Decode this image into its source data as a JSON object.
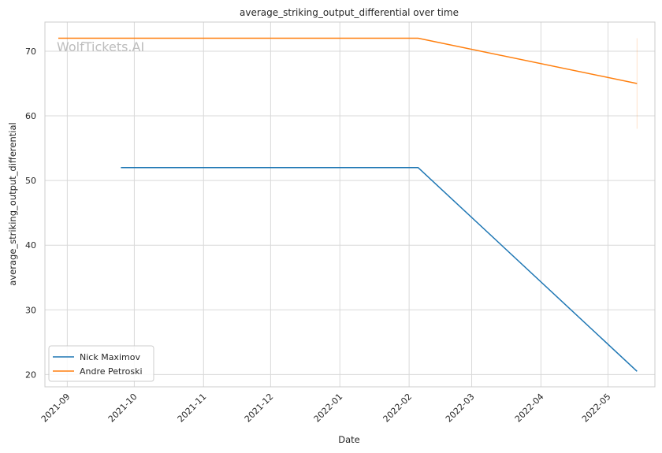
{
  "watermark": "WolfTickets.AI",
  "chart_data": {
    "type": "line",
    "title": "average_striking_output_differential over time",
    "xlabel": "Date",
    "ylabel": "average_striking_output_differential",
    "x_range": [
      "2021-08-22",
      "2022-05-22"
    ],
    "ylim": [
      18.1,
      74.5
    ],
    "x_ticks": [
      {
        "date": "2021-09-01",
        "label": "2021-09"
      },
      {
        "date": "2021-10-01",
        "label": "2021-10"
      },
      {
        "date": "2021-11-01",
        "label": "2021-11"
      },
      {
        "date": "2021-12-01",
        "label": "2021-12"
      },
      {
        "date": "2022-01-01",
        "label": "2022-01"
      },
      {
        "date": "2022-02-01",
        "label": "2022-02"
      },
      {
        "date": "2022-03-01",
        "label": "2022-03"
      },
      {
        "date": "2022-04-01",
        "label": "2022-04"
      },
      {
        "date": "2022-05-01",
        "label": "2022-05"
      }
    ],
    "y_ticks": [
      20,
      30,
      40,
      50,
      60,
      70
    ],
    "grid": true,
    "legend_position": "lower-left",
    "series": [
      {
        "name": "Nick Maximov",
        "color": "#1f77b4",
        "points": [
          {
            "x": "2021-09-25",
            "y": 52
          },
          {
            "x": "2022-02-05",
            "y": 52
          },
          {
            "x": "2022-05-14",
            "y": 20.5
          }
        ]
      },
      {
        "name": "Andre Petroski",
        "color": "#ff7f0e",
        "points": [
          {
            "x": "2021-08-28",
            "y": 72
          },
          {
            "x": "2022-02-05",
            "y": 72
          },
          {
            "x": "2022-05-14",
            "y": 65
          }
        ],
        "band": {
          "x": "2022-05-14",
          "low": 58,
          "high": 72
        }
      }
    ]
  }
}
